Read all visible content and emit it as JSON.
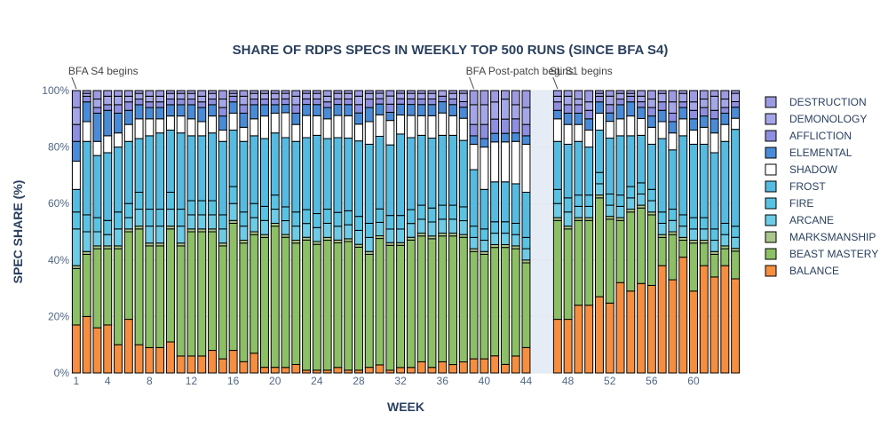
{
  "chart_data": {
    "type": "bar",
    "stacked": true,
    "title": "SHARE OF RDPS SPECS IN WEEKLY TOP 500 RUNS (SINCE BFA S4)",
    "xlabel": "WEEK",
    "ylabel": "SPEC SHARE (%)",
    "ylim": [
      0,
      100
    ],
    "ytick_labels": [
      "0%",
      "20%",
      "40%",
      "60%",
      "80%",
      "100%"
    ],
    "xlim": [
      0.5,
      64.5
    ],
    "xtick_values": [
      1,
      4,
      8,
      12,
      16,
      20,
      24,
      28,
      32,
      36,
      40,
      44,
      48,
      52,
      56,
      60
    ],
    "xtick_labels": [
      "1",
      "4",
      "8",
      "12",
      "16",
      "20",
      "24",
      "28",
      "32",
      "36",
      "40",
      "44",
      "48",
      "52",
      "56",
      "60"
    ],
    "shaded_gap": [
      44.5,
      46.5
    ],
    "legend_position": "right",
    "grid": true,
    "annotations": [
      {
        "text": "BFA S4 begins",
        "x": 1
      },
      {
        "text": "BFA Post-patch begins",
        "x": 39
      },
      {
        "text": "SL S1 begins",
        "x": 47
      }
    ],
    "x": [
      1,
      2,
      3,
      4,
      5,
      6,
      7,
      8,
      9,
      10,
      11,
      12,
      13,
      14,
      15,
      16,
      17,
      18,
      19,
      20,
      21,
      22,
      23,
      24,
      25,
      26,
      27,
      28,
      29,
      30,
      31,
      32,
      33,
      34,
      35,
      36,
      37,
      38,
      39,
      40,
      41,
      42,
      43,
      44,
      47,
      48,
      49,
      50,
      51,
      52,
      53,
      54,
      55,
      56,
      57,
      58,
      59,
      60,
      61,
      62,
      63,
      64
    ],
    "series": [
      {
        "name": "BALANCE",
        "color": "#F58E40",
        "values": [
          17,
          20,
          16,
          17,
          10,
          19,
          10,
          9,
          9,
          11,
          6,
          6,
          6,
          8,
          5,
          8,
          4,
          7,
          2,
          2,
          2,
          3,
          1,
          1,
          1,
          2,
          1,
          1,
          2,
          3,
          1,
          2,
          2,
          4,
          2,
          4,
          3,
          4,
          5,
          5,
          6,
          3,
          6,
          9,
          19,
          19,
          24,
          24,
          27,
          25,
          32,
          29,
          32,
          31,
          38,
          33,
          41,
          29,
          38,
          34,
          38,
          34
        ]
      },
      {
        "name": "BEAST MASTERY",
        "color": "#8DC066",
        "values": [
          20,
          22,
          28,
          27,
          34,
          31,
          41,
          36,
          36,
          40,
          39,
          44,
          44,
          42,
          40,
          45,
          42,
          42,
          46,
          50,
          47,
          43,
          47,
          45,
          46,
          45,
          46,
          44,
          40,
          47,
          46,
          45,
          46,
          45,
          46,
          45,
          46,
          45,
          38,
          37,
          38,
          41,
          38,
          30,
          35,
          32,
          30,
          30,
          35,
          30,
          22,
          28,
          27,
          25,
          10,
          16,
          6,
          17,
          8,
          8,
          6,
          10
        ]
      },
      {
        "name": "MARKSMANSHIP",
        "color": "#A9C68B",
        "values": [
          1,
          1,
          1,
          1,
          1,
          1,
          1,
          1,
          1,
          1,
          1,
          1,
          1,
          1,
          1,
          1,
          1,
          1,
          1,
          1,
          1,
          1,
          1,
          1,
          1,
          1,
          1,
          1,
          1,
          1,
          1,
          1,
          1,
          1,
          1,
          1,
          1,
          1,
          1,
          1,
          1,
          1,
          1,
          1,
          1,
          1,
          1,
          1,
          1,
          1,
          1,
          1,
          1,
          1,
          1,
          1,
          1,
          1,
          1,
          1,
          1,
          1
        ]
      },
      {
        "name": "ARCANE",
        "color": "#6DCBE6",
        "values": [
          13,
          7,
          5,
          4,
          6,
          4,
          6,
          6,
          6,
          6,
          6,
          5,
          5,
          5,
          5,
          6,
          5,
          5,
          5,
          5,
          5,
          5,
          5,
          5,
          5,
          5,
          5,
          5,
          5,
          5,
          5,
          5,
          5,
          5,
          5,
          5,
          5,
          5,
          4,
          4,
          4,
          4,
          4,
          4,
          5,
          5,
          4,
          4,
          4,
          4,
          4,
          4,
          4,
          4,
          4,
          4,
          4,
          4,
          4,
          4,
          4,
          4
        ]
      },
      {
        "name": "FIRE",
        "color": "#59C3E3",
        "values": [
          6,
          6,
          5,
          5,
          6,
          5,
          6,
          6,
          6,
          6,
          6,
          5,
          5,
          5,
          5,
          6,
          5,
          5,
          5,
          5,
          5,
          5,
          5,
          5,
          5,
          5,
          5,
          5,
          5,
          5,
          5,
          5,
          5,
          5,
          5,
          5,
          5,
          5,
          4,
          4,
          4,
          4,
          4,
          4,
          5,
          5,
          4,
          4,
          4,
          4,
          4,
          4,
          4,
          4,
          4,
          4,
          4,
          4,
          4,
          4,
          4,
          4
        ]
      },
      {
        "name": "FROST",
        "color": "#56BBE1",
        "values": [
          8,
          26,
          22,
          24,
          23,
          22,
          19,
          26,
          27,
          22,
          27,
          23,
          23,
          24,
          26,
          20,
          25,
          24,
          24,
          22,
          25,
          25,
          26,
          28,
          25,
          27,
          26,
          27,
          28,
          27,
          26,
          30,
          26,
          25,
          25,
          25,
          25,
          24,
          20,
          14,
          14,
          14,
          14,
          16,
          17,
          19,
          19,
          17,
          15,
          20,
          21,
          18,
          17,
          16,
          26,
          21,
          28,
          26,
          26,
          27,
          29,
          35
        ]
      },
      {
        "name": "SHADOW",
        "color": "#FFFFFF",
        "values": [
          10,
          7,
          5,
          6,
          5,
          6,
          7,
          6,
          5,
          5,
          6,
          6,
          5,
          6,
          4,
          6,
          5,
          6,
          8,
          7,
          9,
          6,
          8,
          7,
          7,
          8,
          8,
          6,
          8,
          8,
          9,
          7,
          8,
          7,
          8,
          8,
          7,
          8,
          9,
          15,
          14,
          14,
          15,
          17,
          8,
          7,
          6,
          6,
          6,
          6,
          6,
          7,
          6,
          6,
          6,
          6,
          6,
          5,
          6,
          7,
          6,
          4
        ]
      },
      {
        "name": "ELEMENTAL",
        "color": "#4A8BD8",
        "values": [
          7,
          7,
          10,
          9,
          7,
          5,
          5,
          4,
          4,
          4,
          4,
          5,
          5,
          4,
          5,
          4,
          5,
          5,
          4,
          3,
          3,
          4,
          4,
          4,
          4,
          4,
          4,
          4,
          5,
          4,
          3,
          4,
          4,
          4,
          4,
          4,
          4,
          4,
          3,
          3,
          3,
          3,
          3,
          3,
          3,
          4,
          4,
          4,
          4,
          3,
          5,
          5,
          4,
          4,
          4,
          4,
          4,
          4,
          4,
          5,
          4,
          4
        ]
      },
      {
        "name": "AFFLICTION",
        "color": "#8E8FE0",
        "values": [
          6,
          2,
          2,
          2,
          3,
          3,
          2,
          2,
          2,
          2,
          2,
          2,
          2,
          2,
          3,
          2,
          3,
          2,
          2,
          2,
          2,
          3,
          2,
          2,
          2,
          2,
          2,
          3,
          3,
          2,
          3,
          2,
          2,
          2,
          2,
          2,
          2,
          2,
          4,
          5,
          5,
          5,
          5,
          4,
          3,
          3,
          3,
          3,
          2,
          3,
          2,
          2,
          2,
          3,
          3,
          3,
          2,
          3,
          3,
          3,
          2,
          2
        ]
      },
      {
        "name": "DEMONOLOGY",
        "color": "#A5A6E8",
        "values": [
          6,
          1,
          3,
          3,
          3,
          2,
          2,
          2,
          2,
          2,
          2,
          2,
          2,
          2,
          3,
          1,
          3,
          2,
          2,
          2,
          2,
          3,
          2,
          2,
          2,
          2,
          2,
          3,
          2,
          2,
          3,
          2,
          2,
          2,
          2,
          2,
          2,
          3,
          7,
          7,
          6,
          7,
          5,
          6,
          2,
          3,
          2,
          3,
          1,
          3,
          2,
          1,
          2,
          3,
          3,
          4,
          3,
          3,
          3,
          5,
          3,
          3
        ]
      },
      {
        "name": "DESTRUCTION",
        "color": "#9C9AE0",
        "values": [
          6,
          1,
          3,
          2,
          2,
          2,
          1,
          2,
          2,
          1,
          1,
          1,
          2,
          1,
          3,
          1,
          2,
          1,
          1,
          1,
          1,
          2,
          1,
          1,
          2,
          1,
          1,
          2,
          1,
          1,
          2,
          1,
          1,
          1,
          1,
          0,
          1,
          1,
          5,
          5,
          4,
          3,
          5,
          6,
          2,
          2,
          3,
          4,
          1,
          2,
          1,
          1,
          2,
          3,
          1,
          4,
          1,
          4,
          3,
          2,
          3,
          1
        ]
      }
    ]
  }
}
